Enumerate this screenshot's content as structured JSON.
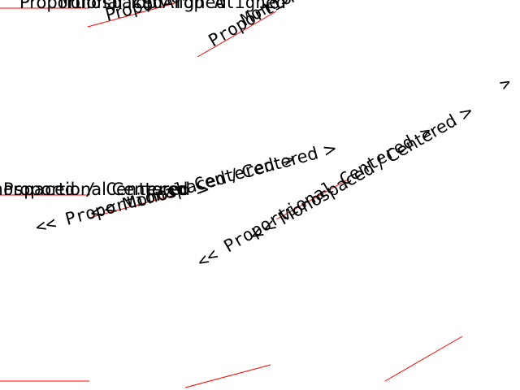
{
  "labels": {
    "proportional_top_aligned": "Proportional Top Aligned",
    "monospaced_top_aligned": "Monospaced Top Aligned",
    "proportional_centered_left": "<< Proportional Centered >",
    "monospaced_centered_left": "<< Monospaced / Centered >",
    "proportional_centered_right": "<< Proportional Centered >",
    "monospaced_centered_right": "<< Monospaced / Centered >",
    "proportional_fragment": "Proportional >",
    "monospaced_fragment": "Monospaced",
    "right_edge_caret": ">"
  },
  "colors": {
    "guide_line": "#ff0000",
    "text": "#000000",
    "background": "#ffffff"
  }
}
